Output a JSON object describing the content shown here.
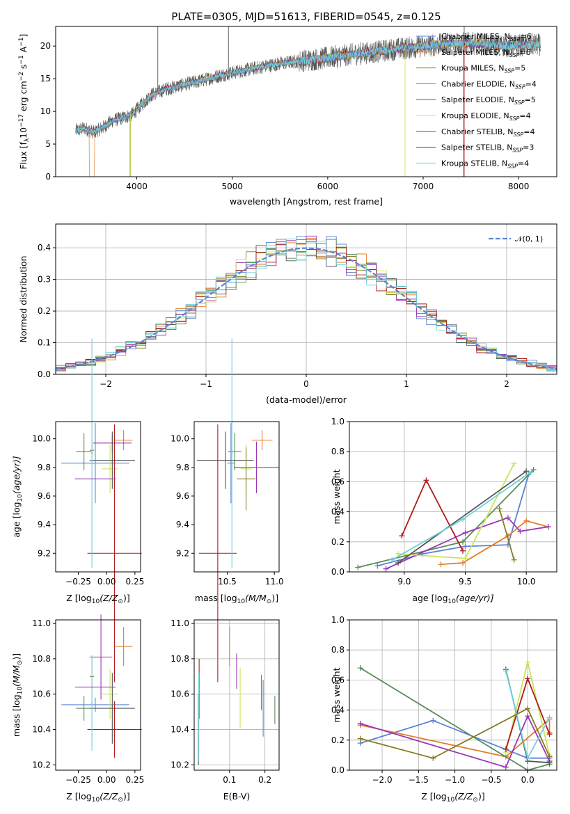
{
  "figure": {
    "title": "PLATE=0305, MJD=51613, FIBERID=0545, z=0.125"
  },
  "colors": {
    "cMILES": "#5a83d6",
    "sMILES": "#e07e2a",
    "kMILES": "#8a7a1f",
    "cELODIE": "#5a8a5a",
    "sELODIE": "#9a36b6",
    "kELODIE": "#c9e45a",
    "cSTELIB": "#555555",
    "sSTELIB": "#b01818",
    "kSTELIB": "#6fd0dc",
    "normal": "#5a83d6"
  },
  "chart_data": [
    {
      "id": "spectrum",
      "type": "line",
      "title": "PLATE=0305, MJD=51613, FIBERID=0545, z=0.125",
      "xlabel": "wavelength [Angstrom, rest frame]",
      "ylabel_main": "Flux [f",
      "ylabel_sub": "λ",
      "ylabel_mid": "10",
      "ylabel_sup1": "−17",
      "ylabel_rest": " erg cm",
      "ylabel_sup2": "−2",
      "ylabel_rest2": " s",
      "ylabel_sup3": "−1",
      "ylabel_rest3": " A",
      "ylabel_sup4": "−1",
      "ylabel_end": "]",
      "xlim": [
        3150,
        8400
      ],
      "ylim": [
        0,
        23
      ],
      "xticks": [
        4000,
        5000,
        6000,
        7000,
        8000
      ],
      "xtick_labels": [
        "4000",
        "5000",
        "6000",
        "7000",
        "8000"
      ],
      "yticks": [
        0,
        5,
        10,
        15,
        20
      ],
      "ytick_labels": [
        "0",
        "5",
        "10",
        "15",
        "20"
      ],
      "legend_position": "top-right",
      "continuum_x": [
        3350,
        3450,
        3550,
        3650,
        3750,
        3850,
        3950,
        4050,
        4150,
        4300,
        4500,
        4700,
        4900,
        5100,
        5300,
        5500,
        5700,
        5900,
        6100,
        6300,
        6500,
        6700,
        6900,
        7100,
        7300,
        7500,
        7700,
        7900,
        8100
      ],
      "continuum_y": [
        7.0,
        7.4,
        6.8,
        7.6,
        8.6,
        9.0,
        9.5,
        11.0,
        12.5,
        13.4,
        14.1,
        14.8,
        15.6,
        16.2,
        16.8,
        17.3,
        17.7,
        18.0,
        18.4,
        18.8,
        19.1,
        19.5,
        19.8,
        20.1,
        20.4,
        20.4,
        20.2,
        20.0,
        20.2
      ],
      "legend": [
        {
          "name_main": "Chabrier MILES, N",
          "name_sub": "SSP",
          "name_end": "=6",
          "color_key": "cMILES"
        },
        {
          "name_main": "Salpeter MILES, N",
          "name_sub": "SSP",
          "name_end": "=6",
          "color_key": "sMILES"
        },
        {
          "name_main": "Kroupa MILES, N",
          "name_sub": "SSP",
          "name_end": "=5",
          "color_key": "kMILES"
        },
        {
          "name_main": "Chabrier ELODIE, N",
          "name_sub": "SSP",
          "name_end": "=4",
          "color_key": "cELODIE"
        },
        {
          "name_main": "Salpeter ELODIE, N",
          "name_sub": "SSP",
          "name_end": "=5",
          "color_key": "sELODIE"
        },
        {
          "name_main": "Kroupa ELODIE, N",
          "name_sub": "SSP",
          "name_end": "=4",
          "color_key": "kELODIE"
        },
        {
          "name_main": "Chabrier STELIB, N",
          "name_sub": "SSP",
          "name_end": "=4",
          "color_key": "cSTELIB"
        },
        {
          "name_main": "Salpeter STELIB, N",
          "name_sub": "SSP",
          "name_end": "=3",
          "color_key": "sSTELIB"
        },
        {
          "name_main": "Kroupa STELIB, N",
          "name_sub": "SSP",
          "name_end": "=4",
          "color_key": "kSTELIB"
        }
      ]
    },
    {
      "id": "residuals",
      "type": "line",
      "xlabel": "(data-model)/error",
      "ylabel": "Normed distribution",
      "xlim": [
        -2.5,
        2.5
      ],
      "ylim": [
        0,
        0.475
      ],
      "xticks": [
        -2,
        -1,
        0,
        1,
        2
      ],
      "xtick_labels": [
        "−2",
        "−1",
        "0",
        "1",
        "2"
      ],
      "yticks": [
        0.0,
        0.1,
        0.2,
        0.3,
        0.4
      ],
      "ytick_labels": [
        "0.0",
        "0.1",
        "0.2",
        "0.3",
        "0.4"
      ],
      "grid": true,
      "legend_label": "𝒩(0, 1)",
      "legend_position": "top-right",
      "bin_width": 0.1
    },
    {
      "id": "age_vs_z",
      "type": "scatter",
      "xlabel_main": "Z [log",
      "xlabel_sub": "10",
      "xlabel_end": "(Z/Z",
      "xlabel_sun": "⊙",
      "xlabel_close": ")]",
      "ylabel_main": "age  [log",
      "ylabel_sub": "10",
      "ylabel_end": "(age/yr)]",
      "xlim": [
        -0.45,
        0.3
      ],
      "ylim": [
        9.07,
        10.12
      ],
      "xticks": [
        -0.25,
        0.0,
        0.25
      ],
      "xtick_labels": [
        "−0.25",
        "0.00",
        "0.25"
      ],
      "yticks": [
        9.2,
        9.4,
        9.6,
        9.8,
        10.0
      ],
      "ytick_labels": [
        "9.2",
        "9.4",
        "9.6",
        "9.8",
        "10.0"
      ],
      "points": [
        {
          "color_key": "cMILES",
          "x": -0.1,
          "xerr": 0.3,
          "y": 9.83,
          "yerr": 0.28
        },
        {
          "color_key": "sMILES",
          "x": 0.15,
          "xerr": 0.08,
          "y": 9.99,
          "yerr": 0.07
        },
        {
          "color_key": "kMILES",
          "x": -0.13,
          "xerr": 0.02,
          "y": 9.92,
          "yerr": 0.05
        },
        {
          "color_key": "cELODIE",
          "x": -0.2,
          "xerr": 0.07,
          "y": 9.91,
          "yerr": 0.13
        },
        {
          "color_key": "sELODIE",
          "x": 0.05,
          "xerr": 0.17,
          "y": 9.97,
          "yerr": 0.06
        },
        {
          "color_key": "kELODIE",
          "x": 0.03,
          "xerr": 0.07,
          "y": 9.79,
          "yerr": 0.17
        },
        {
          "color_key": "cSTELIB",
          "x": 0.05,
          "xerr": 0.2,
          "y": 9.85,
          "yerr": 0.2
        },
        {
          "color_key": "sSTELIB",
          "x": 0.07,
          "xerr": 0.24,
          "y": 9.2,
          "yerr": 0.9
        },
        {
          "color_key": "kSTELIB",
          "x": -0.13,
          "xerr": 0.01,
          "y": 9.9,
          "yerr": 0.8
        }
      ],
      "extra_points": [
        {
          "color_key": "sELODIE",
          "x": 0.0,
          "xerr": 0.0,
          "y": 9.8,
          "yerr": 0.0
        },
        {
          "color_key": "sELODIE",
          "x": -0.1,
          "xerr": 0.18,
          "y": 9.72,
          "yerr": 0.0
        }
      ]
    },
    {
      "id": "age_vs_mass",
      "type": "scatter",
      "xlabel_main": "mass [log",
      "xlabel_sub": "10",
      "xlabel_end": "(M/M",
      "xlabel_sun": "⊙",
      "xlabel_close": ")]",
      "xlim": [
        10.15,
        11.05
      ],
      "ylim": [
        9.07,
        10.12
      ],
      "xticks": [
        10.5,
        11.0
      ],
      "xtick_labels": [
        "10.5",
        "11.0"
      ],
      "yticks": [
        9.2,
        9.4,
        9.6,
        9.8,
        10.0
      ],
      "ytick_labels": [
        "9.2",
        "9.4",
        "9.6",
        "9.8",
        "10.0"
      ],
      "points": [
        {
          "color_key": "cMILES",
          "x": 10.54,
          "xerr": 0.04,
          "y": 9.83,
          "yerr": 0.28
        },
        {
          "color_key": "sMILES",
          "x": 10.87,
          "xerr": 0.11,
          "y": 9.99,
          "yerr": 0.07
        },
        {
          "color_key": "cELODIE",
          "x": 10.58,
          "xerr": 0.07,
          "y": 9.91,
          "yerr": 0.13
        },
        {
          "color_key": "sELODIE",
          "x": 10.81,
          "xerr": 0.24,
          "y": 9.8,
          "yerr": 0.18
        },
        {
          "color_key": "kELODIE",
          "x": 10.7,
          "xerr": 0.06,
          "y": 9.79,
          "yerr": 0.17
        },
        {
          "color_key": "cSTELIB",
          "x": 10.48,
          "xerr": 0.3,
          "y": 9.85,
          "yerr": 0.2
        },
        {
          "color_key": "sSTELIB",
          "x": 10.4,
          "xerr": 0.2,
          "y": 9.2,
          "yerr": 0.9
        },
        {
          "color_key": "kSTELIB",
          "x": 10.55,
          "xerr": 0.01,
          "y": 9.9,
          "yerr": 0.8
        },
        {
          "color_key": "kMILES",
          "x": 10.7,
          "xerr": 0.1,
          "y": 9.72,
          "yerr": 0.22
        }
      ]
    },
    {
      "id": "weight_vs_age",
      "type": "line",
      "xlabel_main": "age  [log",
      "xlabel_sub": "10",
      "xlabel_end": "(age/yr)]",
      "ylabel": "mass weight",
      "xlim": [
        8.55,
        10.25
      ],
      "ylim": [
        0,
        1
      ],
      "xticks": [
        9.0,
        9.5,
        10.0
      ],
      "xtick_labels": [
        "9.0",
        "9.5",
        "10.0"
      ],
      "yticks": [
        0.0,
        0.2,
        0.4,
        0.6,
        0.8,
        1.0
      ],
      "ytick_labels": [
        "0.0",
        "0.2",
        "0.4",
        "0.6",
        "0.8",
        "1.0"
      ],
      "grid": true,
      "series": [
        {
          "color_key": "cMILES",
          "x": [
            8.78,
            9.15,
            9.5,
            9.85,
            10.02
          ],
          "y": [
            0.04,
            0.12,
            0.17,
            0.18,
            0.65
          ]
        },
        {
          "color_key": "sMILES",
          "x": [
            9.3,
            9.48,
            9.85,
            10.0,
            10.18
          ],
          "y": [
            0.05,
            0.06,
            0.24,
            0.34,
            0.3
          ]
        },
        {
          "color_key": "cELODIE",
          "x": [
            8.62,
            9.48,
            10.06
          ],
          "y": [
            0.03,
            0.2,
            0.68
          ]
        },
        {
          "color_key": "sELODIE",
          "x": [
            8.85,
            9.5,
            9.85,
            9.95,
            10.18
          ],
          "y": [
            0.02,
            0.26,
            0.36,
            0.27,
            0.3
          ]
        },
        {
          "color_key": "kELODIE",
          "x": [
            8.95,
            9.5,
            9.9
          ],
          "y": [
            0.12,
            0.09,
            0.72
          ]
        },
        {
          "color_key": "cSTELIB",
          "x": [
            8.95,
            10.0
          ],
          "y": [
            0.06,
            0.67
          ]
        },
        {
          "color_key": "sSTELIB",
          "x": [
            8.98,
            9.18,
            9.48
          ],
          "y": [
            0.24,
            0.61,
            0.14
          ]
        },
        {
          "color_key": "kSTELIB",
          "x": [
            8.9,
            9.48,
            10.03
          ],
          "y": [
            0.08,
            0.35,
            0.66
          ]
        },
        {
          "color_key": "kMILES",
          "x": [
            9.78,
            9.9
          ],
          "y": [
            0.42,
            0.08
          ]
        }
      ]
    },
    {
      "id": "mass_vs_z",
      "type": "scatter",
      "xlabel_main": "Z [log",
      "xlabel_sub": "10",
      "xlabel_end": "(Z/Z",
      "xlabel_sun": "⊙",
      "xlabel_close": ")]",
      "ylabel_main": "mass [log",
      "ylabel_sub": "10",
      "ylabel_end": "(M/M",
      "ylabel_sun": "⊙",
      "ylabel_close": ")]",
      "xlim": [
        -0.45,
        0.3
      ],
      "ylim": [
        10.17,
        11.02
      ],
      "xticks": [
        -0.25,
        0.0,
        0.25
      ],
      "xtick_labels": [
        "−0.25",
        "0.00",
        "0.25"
      ],
      "yticks": [
        10.2,
        10.4,
        10.6,
        10.8,
        11.0
      ],
      "ytick_labels": [
        "10.2",
        "10.4",
        "10.6",
        "10.8",
        "11.0"
      ],
      "points": [
        {
          "color_key": "cMILES",
          "x": -0.1,
          "xerr": 0.3,
          "y": 10.54,
          "yerr": 0.04
        },
        {
          "color_key": "sMILES",
          "x": 0.15,
          "xerr": 0.08,
          "y": 10.87,
          "yerr": 0.11
        },
        {
          "color_key": "kMILES",
          "x": -0.13,
          "xerr": 0.02,
          "y": 10.7,
          "yerr": 0.1
        },
        {
          "color_key": "cELODIE",
          "x": -0.2,
          "xerr": 0.07,
          "y": 10.52,
          "yerr": 0.07
        },
        {
          "color_key": "sELODIE",
          "x": -0.05,
          "xerr": 0.1,
          "y": 10.81,
          "yerr": 0.24
        },
        {
          "color_key": "kELODIE",
          "x": 0.03,
          "xerr": 0.07,
          "y": 10.6,
          "yerr": 0.14
        },
        {
          "color_key": "cSTELIB",
          "x": 0.05,
          "xerr": 0.2,
          "y": 10.52,
          "yerr": 0.2
        },
        {
          "color_key": "sSTELIB",
          "x": 0.07,
          "xerr": 0.24,
          "y": 10.4,
          "yerr": 0.16
        },
        {
          "color_key": "kSTELIB",
          "x": -0.13,
          "xerr": 0.01,
          "y": 10.55,
          "yerr": 0.27
        },
        {
          "color_key": "sELODIE",
          "x": -0.1,
          "xerr": 0.18,
          "y": 10.64,
          "yerr": 0.0
        }
      ]
    },
    {
      "id": "mass_vs_ebv",
      "type": "scatter",
      "xlabel": "E(B-V)",
      "xlim": [
        0.0,
        0.24
      ],
      "ylim": [
        10.17,
        11.02
      ],
      "xticks": [
        0.1,
        0.2
      ],
      "xtick_labels": [
        "0.1",
        "0.2"
      ],
      "yticks": [
        10.2,
        10.4,
        10.6,
        10.8,
        11.0
      ],
      "ytick_labels": [
        "10.2",
        "10.4",
        "10.6",
        "10.8",
        "11.0"
      ],
      "points": [
        {
          "color_key": "cMILES",
          "x": 0.195,
          "y": 10.52,
          "yerr": 0.16
        },
        {
          "color_key": "sMILES",
          "x": 0.1,
          "y": 10.87,
          "yerr": 0.11
        },
        {
          "color_key": "kELODIE",
          "x": 0.13,
          "y": 10.58,
          "yerr": 0.17
        },
        {
          "color_key": "sELODIE",
          "x": 0.12,
          "y": 10.73,
          "yerr": 0.1
        },
        {
          "color_key": "kMILES",
          "x": 0.19,
          "y": 10.61,
          "yerr": 0.1
        },
        {
          "color_key": "cELODIE",
          "x": 0.228,
          "y": 10.51,
          "yerr": 0.08
        },
        {
          "color_key": "cSTELIB",
          "x": 0.012,
          "y": 10.4,
          "yerr": 0.2
        },
        {
          "color_key": "sSTELIB",
          "x": 0.014,
          "y": 10.63,
          "yerr": 0.17
        },
        {
          "color_key": "kSTELIB",
          "x": 0.013,
          "y": 10.47,
          "yerr": 0.25
        }
      ]
    },
    {
      "id": "weight_vs_z",
      "type": "line",
      "xlabel_main": "Z [log",
      "xlabel_sub": "10",
      "xlabel_end": "(Z/Z",
      "xlabel_sun": "⊙",
      "xlabel_close": ")]",
      "ylabel": "mass weight",
      "xlim": [
        -2.45,
        0.4
      ],
      "ylim": [
        0,
        1
      ],
      "xticks": [
        -2.0,
        -1.5,
        -1.0,
        -0.5,
        0.0
      ],
      "xtick_labels": [
        "−2.0",
        "−1.5",
        "−1.0",
        "−0.5",
        "0.0"
      ],
      "yticks": [
        0.0,
        0.2,
        0.4,
        0.6,
        0.8,
        1.0
      ],
      "ytick_labels": [
        "0.0",
        "0.2",
        "0.4",
        "0.6",
        "0.8",
        "1.0"
      ],
      "grid": true,
      "series": [
        {
          "color_key": "cMILES",
          "x": [
            -2.3,
            -1.3,
            0.0,
            0.3
          ],
          "y": [
            0.18,
            0.33,
            0.08,
            0.08
          ]
        },
        {
          "color_key": "sMILES",
          "x": [
            -2.3,
            -0.3,
            0.3,
            0.3
          ],
          "y": [
            0.3,
            0.09,
            0.34,
            0.25
          ]
        },
        {
          "color_key": "cELODIE",
          "x": [
            -2.3,
            0.0,
            0.3
          ],
          "y": [
            0.68,
            0.0,
            0.04
          ]
        },
        {
          "color_key": "sELODIE",
          "x": [
            -2.3,
            -0.3,
            0.0,
            0.3
          ],
          "y": [
            0.31,
            0.02,
            0.36,
            0.06
          ]
        },
        {
          "color_key": "kELODIE",
          "x": [
            -0.3,
            0.0,
            0.3
          ],
          "y": [
            0.12,
            0.72,
            0.1
          ]
        },
        {
          "color_key": "cSTELIB",
          "x": [
            -0.3,
            0.0,
            0.3
          ],
          "y": [
            0.67,
            0.06,
            0.05
          ]
        },
        {
          "color_key": "sSTELIB",
          "x": [
            -0.3,
            0.0,
            0.3
          ],
          "y": [
            0.14,
            0.61,
            0.24
          ]
        },
        {
          "color_key": "kSTELIB",
          "x": [
            -0.3,
            0.0,
            0.3
          ],
          "y": [
            0.66,
            0.08,
            0.35
          ]
        },
        {
          "color_key": "kMILES",
          "x": [
            -2.3,
            -1.3,
            0.0,
            0.3
          ],
          "y": [
            0.21,
            0.08,
            0.41,
            0.09
          ]
        }
      ]
    }
  ]
}
